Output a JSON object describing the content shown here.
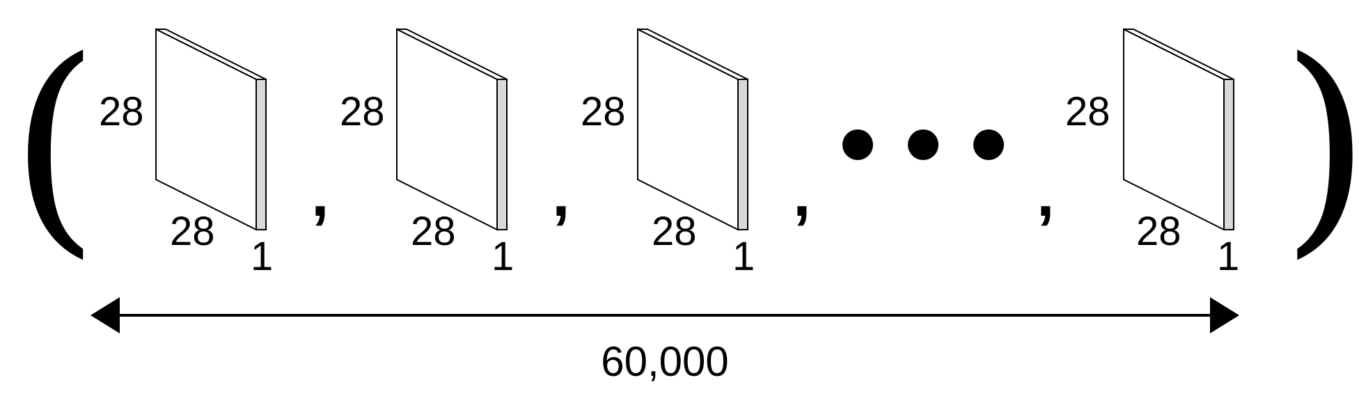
{
  "brackets": {
    "open": "(",
    "close": ")"
  },
  "separator": ",",
  "images": [
    {
      "height_label": "28",
      "width_label": "28",
      "depth_label": "1"
    },
    {
      "height_label": "28",
      "width_label": "28",
      "depth_label": "1"
    },
    {
      "height_label": "28",
      "width_label": "28",
      "depth_label": "1"
    },
    {
      "height_label": "28",
      "width_label": "28",
      "depth_label": "1"
    }
  ],
  "ellipsis_dots": 3,
  "count": {
    "label": "60,000"
  },
  "colors": {
    "stroke": "#000000",
    "slab_face": "#ffffff",
    "slab_edge": "#d9d9d9",
    "dot": "#000000"
  }
}
